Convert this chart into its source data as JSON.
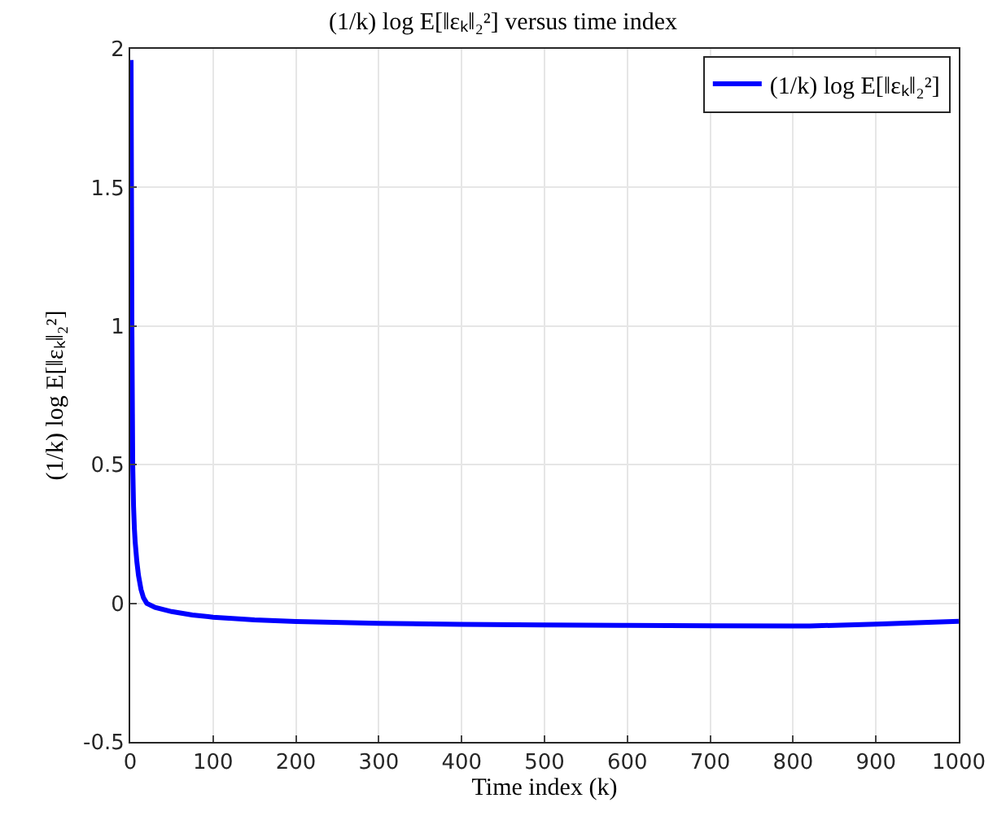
{
  "chart_data": {
    "type": "line",
    "title": "(1/k) log E[‖εₖ‖₂²] versus time index",
    "xlabel": "Time index (k)",
    "ylabel": "(1/k) log E[‖εₖ‖₂²]",
    "x": [
      1,
      2,
      3,
      4,
      5,
      6,
      8,
      10,
      13,
      16,
      20,
      30,
      50,
      75,
      100,
      150,
      200,
      300,
      400,
      500,
      600,
      700,
      800,
      820,
      900,
      1000
    ],
    "series": [
      {
        "name": "(1/k) log E[‖εₖ‖₂²]",
        "color": "#0000ff",
        "values": [
          1.96,
          1.0,
          0.5,
          0.35,
          0.27,
          0.22,
          0.15,
          0.1,
          0.05,
          0.02,
          0.0,
          -0.015,
          -0.03,
          -0.042,
          -0.05,
          -0.06,
          -0.066,
          -0.072,
          -0.076,
          -0.078,
          -0.08,
          -0.081,
          -0.082,
          -0.082,
          -0.075,
          -0.065
        ]
      }
    ],
    "xlim": [
      0,
      1000
    ],
    "ylim": [
      -0.5,
      2
    ],
    "xticks": [
      0,
      100,
      200,
      300,
      400,
      500,
      600,
      700,
      800,
      900,
      1000
    ],
    "yticks": [
      -0.5,
      0,
      0.5,
      1,
      1.5,
      2
    ],
    "grid": true,
    "legend": "top right",
    "line_style": "solid",
    "marker": "none"
  }
}
